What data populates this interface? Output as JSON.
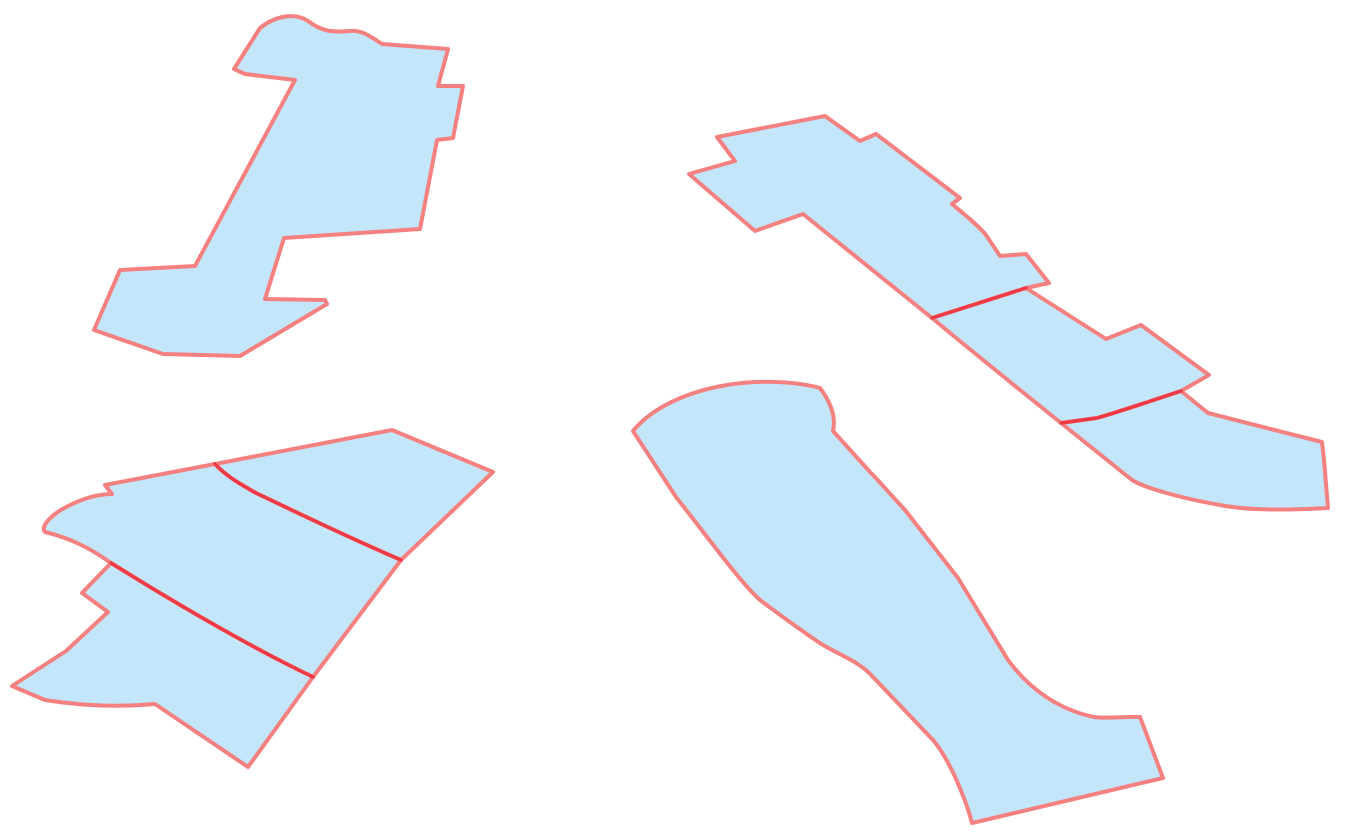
{
  "map": {
    "style": {
      "fill_color": "#c4e6fb",
      "stroke_color": "#f58080",
      "seam_color": "#ee3a45",
      "background": "#ffffff"
    },
    "features": [
      {
        "id": "parcel-1",
        "kind": "polygon",
        "group": "top-left"
      },
      {
        "id": "parcel-2",
        "kind": "polygon",
        "group": "top-right"
      },
      {
        "id": "parcel-3",
        "kind": "polygon",
        "group": "top-right"
      },
      {
        "id": "parcel-4",
        "kind": "polygon",
        "group": "top-right"
      },
      {
        "id": "parcel-5",
        "kind": "polygon",
        "group": "bottom-left"
      },
      {
        "id": "parcel-6",
        "kind": "polygon",
        "group": "bottom-left"
      },
      {
        "id": "parcel-7",
        "kind": "polygon",
        "group": "bottom-left"
      },
      {
        "id": "parcel-8",
        "kind": "polygon",
        "group": "bottom-center"
      }
    ],
    "shared_boundaries": 4
  }
}
